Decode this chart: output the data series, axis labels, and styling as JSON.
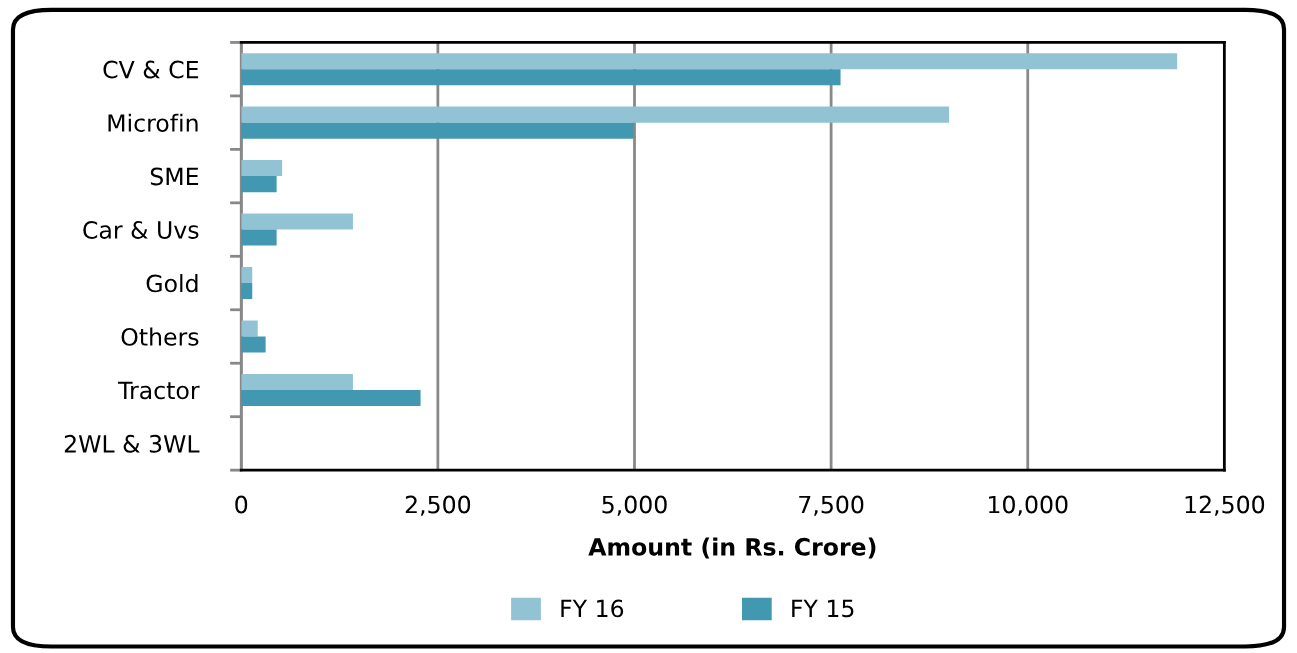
{
  "chart_data": {
    "type": "bar",
    "orientation": "horizontal",
    "xlabel": "Amount (in Rs. Crore)",
    "categories": [
      "CV & CE",
      "Microfin",
      "SME",
      "Car & Uvs",
      "Gold",
      "Others",
      "Tractor",
      "2WL & 3WL"
    ],
    "series": [
      {
        "name": "FY 16",
        "color": "#92c3d5",
        "values": [
          11900,
          9000,
          520,
          1420,
          140,
          210,
          1420,
          null
        ]
      },
      {
        "name": "FY 15",
        "color": "#4398b1",
        "values": [
          7620,
          4990,
          450,
          450,
          140,
          310,
          2280,
          null
        ]
      }
    ],
    "xlim": [
      0,
      12500
    ],
    "xticks": [
      {
        "value": 0,
        "label": "0"
      },
      {
        "value": 2500,
        "label": "2,500"
      },
      {
        "value": 5000,
        "label": "5,000"
      },
      {
        "value": 7500,
        "label": "7,500"
      },
      {
        "value": 10000,
        "label": "10,000"
      },
      {
        "value": 12500,
        "label": "12,500"
      }
    ],
    "grid": "x",
    "legend": "bottom"
  }
}
